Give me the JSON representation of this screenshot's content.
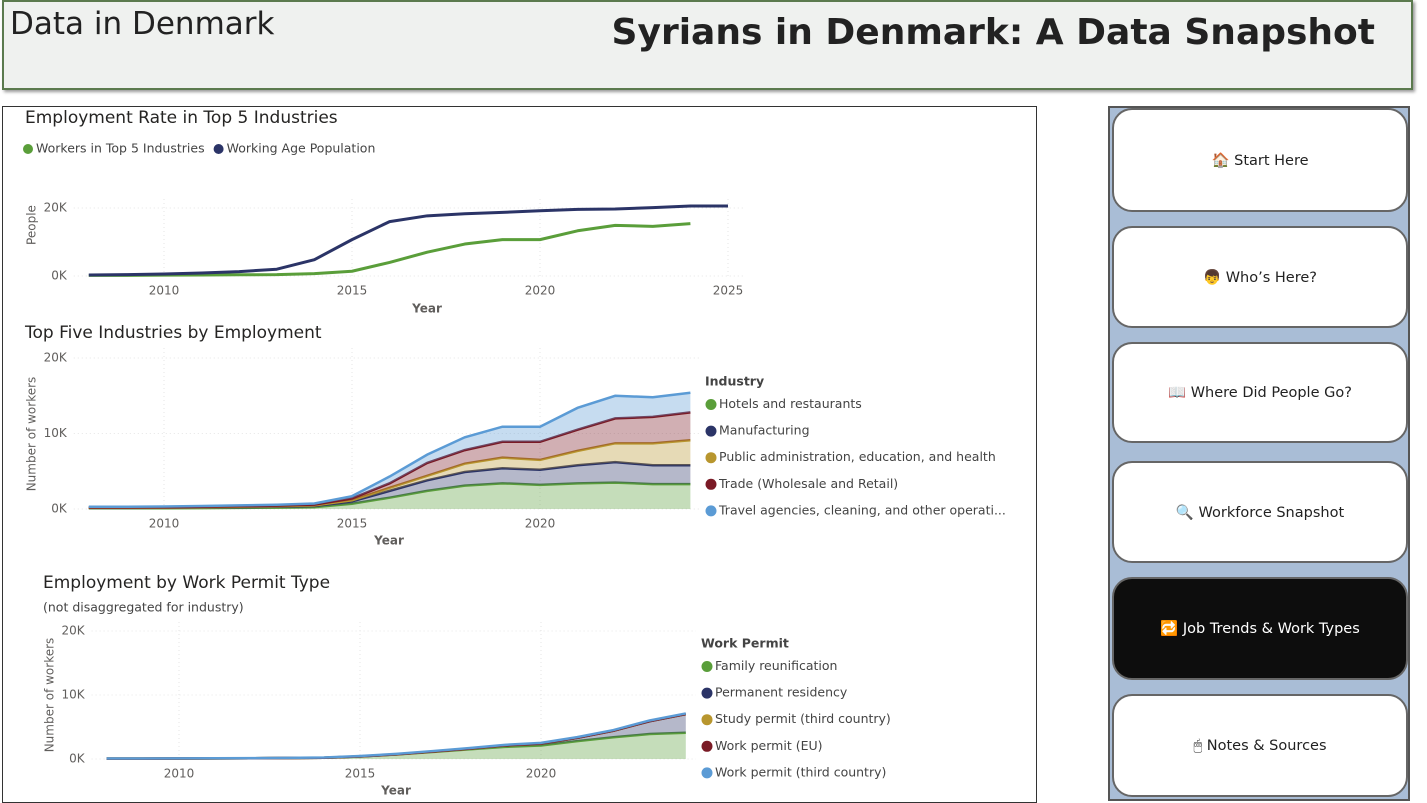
{
  "header": {
    "left": "Data in Denmark",
    "title": "Syrians in Denmark: A Data Snapshot"
  },
  "nav": {
    "items": [
      "🏠 Start Here",
      "👦 Who’s Here?",
      "📖 Where Did People Go?",
      "🔍 Workforce Snapshot",
      "🔁 Job Trends & Work Types",
      "🖱 Notes & Sources"
    ],
    "active": 4
  },
  "chart_data": [
    {
      "type": "line",
      "title": "Employment Rate in Top 5 Industries",
      "x_label": "Year",
      "y_label": "People",
      "legend": "top",
      "grid": true,
      "x": [
        2008,
        2009,
        2010,
        2011,
        2012,
        2013,
        2014,
        2015,
        2016,
        2017,
        2018,
        2019,
        2020,
        2021,
        2022,
        2023,
        2024,
        2025
      ],
      "xlim": [
        2008,
        2025
      ],
      "xticks": [
        2010,
        2015,
        2020,
        2025
      ],
      "ylim": [
        0,
        20000
      ],
      "yticks": [
        {
          "value": 0,
          "label": "0K"
        },
        {
          "value": 20000,
          "label": "20K"
        }
      ],
      "series": [
        {
          "name": "Workers in Top 5 Industries",
          "color": "#5a9e3a",
          "values": [
            200,
            200,
            250,
            300,
            350,
            400,
            700,
            1400,
            4000,
            7000,
            9400,
            10700,
            10700,
            13300,
            14900,
            14600,
            15400,
            null
          ]
        },
        {
          "name": "Working Age Population",
          "color": "#2b3467",
          "values": [
            300,
            400,
            600,
            900,
            1300,
            2000,
            4800,
            10700,
            16000,
            17700,
            18300,
            18700,
            19200,
            19600,
            19700,
            20100,
            20600,
            20600
          ]
        }
      ]
    },
    {
      "type": "area",
      "stacked": true,
      "title": "Top Five Industries by Employment",
      "x_label": "Year",
      "y_label": "Number of workers",
      "legend": "right",
      "legend_title": "Industry",
      "grid": true,
      "x": [
        2008,
        2009,
        2010,
        2011,
        2012,
        2013,
        2014,
        2015,
        2016,
        2017,
        2018,
        2019,
        2020,
        2021,
        2022,
        2023,
        2024
      ],
      "xlim": [
        2008,
        2024
      ],
      "xticks": [
        2010,
        2015,
        2020
      ],
      "ylim": [
        0,
        20000
      ],
      "yticks": [
        {
          "value": 0,
          "label": "0K"
        },
        {
          "value": 10000,
          "label": "10K"
        },
        {
          "value": 20000,
          "label": "20K"
        }
      ],
      "series": [
        {
          "name": "Hotels and restaurants",
          "color": "#5a9e3a",
          "values": [
            100,
            100,
            100,
            120,
            150,
            180,
            250,
            700,
            1500,
            2400,
            3100,
            3400,
            3200,
            3400,
            3500,
            3300,
            3300
          ]
        },
        {
          "name": "Manufacturing",
          "color": "#2b3467",
          "values": [
            50,
            50,
            60,
            80,
            100,
            120,
            150,
            300,
            900,
            1400,
            1800,
            2000,
            2000,
            2400,
            2700,
            2500,
            2500
          ]
        },
        {
          "name": "Public administration, education, and health",
          "color": "#b8962e",
          "values": [
            20,
            20,
            30,
            40,
            50,
            60,
            80,
            150,
            400,
            600,
            1100,
            1400,
            1300,
            1900,
            2500,
            2900,
            3300
          ]
        },
        {
          "name": "Trade (Wholesale and Retail)",
          "color": "#7a1a25",
          "values": [
            30,
            30,
            40,
            50,
            60,
            80,
            100,
            250,
            600,
            1700,
            1800,
            2100,
            2400,
            2800,
            3300,
            3500,
            3700
          ]
        },
        {
          "name": "Travel agencies, cleaning, and other operati...",
          "color": "#5b9bd5",
          "values": [
            100,
            100,
            100,
            110,
            120,
            130,
            150,
            300,
            900,
            1100,
            1700,
            2000,
            2000,
            2900,
            3000,
            2600,
            2600
          ]
        }
      ]
    },
    {
      "type": "area",
      "stacked": true,
      "title": "Employment by Work Permit Type",
      "subtitle": "(not disaggregated for industry)",
      "x_label": "Year",
      "y_label": "Number of workers",
      "legend": "right",
      "legend_title": "Work Permit",
      "grid": true,
      "x": [
        2008,
        2009,
        2010,
        2011,
        2012,
        2013,
        2014,
        2015,
        2016,
        2017,
        2018,
        2019,
        2020,
        2021,
        2022,
        2023,
        2024
      ],
      "xlim": [
        2008,
        2024
      ],
      "xticks": [
        2010,
        2015,
        2020
      ],
      "ylim": [
        0,
        20000
      ],
      "yticks": [
        {
          "value": 0,
          "label": "0K"
        },
        {
          "value": 10000,
          "label": "10K"
        },
        {
          "value": 20000,
          "label": "20K"
        }
      ],
      "series": [
        {
          "name": "Family reunification",
          "color": "#5a9e3a",
          "values": [
            50,
            60,
            80,
            100,
            120,
            150,
            200,
            400,
            700,
            1100,
            1500,
            1900,
            2100,
            2800,
            3400,
            3900,
            4100
          ]
        },
        {
          "name": "Permanent residency",
          "color": "#2b3467",
          "values": [
            0,
            0,
            0,
            0,
            0,
            0,
            0,
            0,
            20,
            50,
            100,
            200,
            300,
            500,
            1000,
            2000,
            2900
          ]
        },
        {
          "name": "Study permit (third country)",
          "color": "#b8962e",
          "values": [
            0,
            0,
            0,
            0,
            0,
            0,
            0,
            10,
            10,
            10,
            10,
            10,
            10,
            10,
            10,
            10,
            10
          ]
        },
        {
          "name": "Work permit (EU)",
          "color": "#7a1a25",
          "values": [
            0,
            0,
            0,
            0,
            0,
            0,
            0,
            10,
            10,
            10,
            10,
            10,
            10,
            10,
            10,
            10,
            10
          ]
        },
        {
          "name": "Work permit (third country)",
          "color": "#5b9bd5",
          "values": [
            20,
            20,
            20,
            20,
            20,
            20,
            30,
            50,
            60,
            70,
            80,
            90,
            100,
            100,
            100,
            100,
            100
          ]
        }
      ]
    }
  ]
}
